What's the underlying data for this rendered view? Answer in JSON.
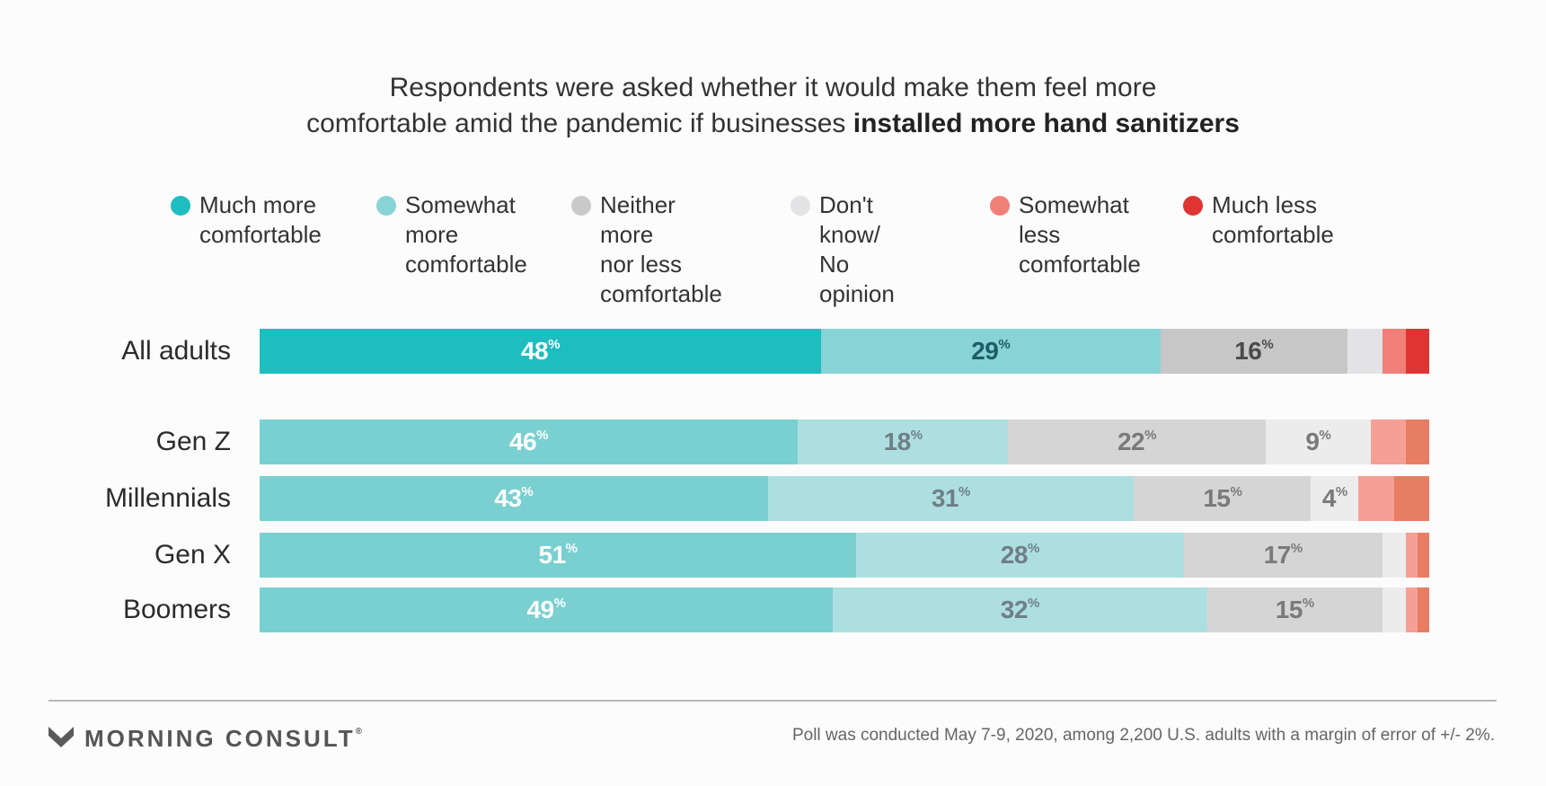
{
  "title": {
    "line1": "Respondents were asked whether it would make them feel more",
    "line2_prefix": "comfortable amid the pandemic if businesses ",
    "line2_bold": "installed more hand sanitizers"
  },
  "chart_data": {
    "type": "bar",
    "orientation": "horizontal",
    "stacked": true,
    "normalized": true,
    "unit": "%",
    "categories": [
      "All adults",
      "Gen Z",
      "Millennials",
      "Gen X",
      "Boomers"
    ],
    "series": [
      {
        "name": "Much more\ncomfortable",
        "values": [
          48,
          46,
          43,
          51,
          49
        ]
      },
      {
        "name": "Somewhat\nmore\ncomfortable",
        "values": [
          29,
          18,
          31,
          28,
          32
        ]
      },
      {
        "name": "Neither more\nnor less\ncomfortable",
        "values": [
          16,
          22,
          15,
          17,
          15
        ]
      },
      {
        "name": "Don't know/\nNo opinion",
        "values": [
          3,
          9,
          4,
          2,
          2
        ]
      },
      {
        "name": "Somewhat\nless\ncomfortable",
        "values": [
          2,
          3,
          3,
          1,
          1
        ]
      },
      {
        "name": "Much less\ncomfortable",
        "values": [
          2,
          2,
          3,
          1,
          1
        ]
      }
    ],
    "data_labels": [
      [
        "48",
        "29",
        "16",
        "",
        "",
        ""
      ],
      [
        "46",
        "18",
        "22",
        "9",
        "",
        ""
      ],
      [
        "43",
        "31",
        "15",
        "4",
        "",
        ""
      ],
      [
        "51",
        "28",
        "17",
        "",
        "",
        ""
      ],
      [
        "49",
        "32",
        "15",
        "",
        "",
        ""
      ]
    ],
    "label_suffix": "%",
    "legend_position": "top",
    "legend_colors": [
      "#1dbdc0",
      "#88d3d6",
      "#c9c9ca",
      "#e3e3e5",
      "#f08078",
      "#de3533"
    ],
    "row_palettes": [
      [
        "#1dbdc0",
        "#88d3d6",
        "#c7c7c8",
        "#e3e3e5",
        "#f08078",
        "#de3533"
      ],
      [
        "#7ad0d1",
        "#addfe1",
        "#d5d5d6",
        "#ececed",
        "#f4a096",
        "#e77d63"
      ],
      [
        "#7ad0d1",
        "#addfe1",
        "#d5d5d6",
        "#ececed",
        "#f4a096",
        "#e77d63"
      ],
      [
        "#7ad0d1",
        "#addfe1",
        "#d5d5d6",
        "#ececed",
        "#f4a096",
        "#e77d63"
      ],
      [
        "#7ad0d1",
        "#addfe1",
        "#d5d5d6",
        "#ececed",
        "#f4a096",
        "#e77d63"
      ]
    ],
    "row_label_colors": [
      [
        "#ffffff",
        "#1d5d66",
        "#4a4a4a",
        "#4a4a4a",
        "",
        ""
      ],
      [
        "#ffffff",
        "#6f7f86",
        "#7a7a7a",
        "#7a7a7a",
        "",
        ""
      ],
      [
        "#ffffff",
        "#6f7f86",
        "#7a7a7a",
        "#7a7a7a",
        "",
        ""
      ],
      [
        "#ffffff",
        "#6f7f86",
        "#7a7a7a",
        "#7a7a7a",
        "",
        ""
      ],
      [
        "#ffffff",
        "#6f7f86",
        "#7a7a7a",
        "#7a7a7a",
        "",
        ""
      ]
    ]
  },
  "footer": {
    "brand": "MORNING CONSULT",
    "registered": "®",
    "note": "Poll was conducted May 7-9, 2020, among 2,200 U.S. adults with a margin of error of +/- 2%."
  }
}
